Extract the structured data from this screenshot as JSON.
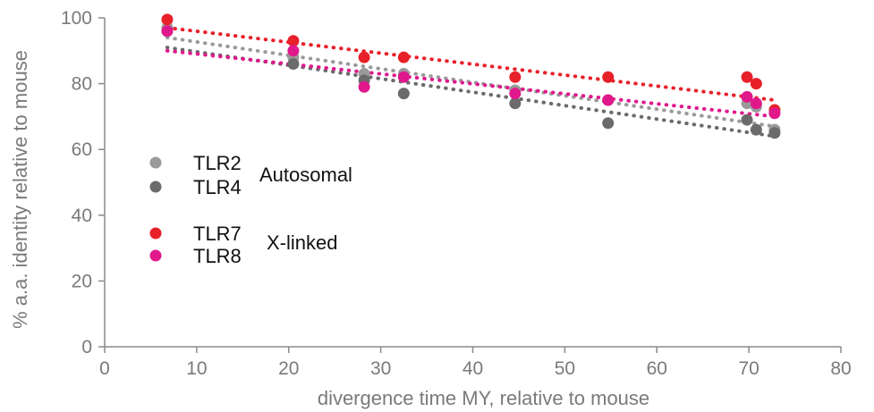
{
  "chart_data": {
    "type": "scatter",
    "xlabel": "divergence time MY, relative to mouse",
    "ylabel": "% a.a. identity relative to mouse",
    "xlim": [
      0,
      80
    ],
    "ylim": [
      0,
      100
    ],
    "xticks": [
      0,
      10,
      20,
      30,
      40,
      50,
      60,
      70,
      80
    ],
    "yticks": [
      0,
      20,
      40,
      60,
      80,
      100
    ],
    "grid": false,
    "trendlines": "linear, dotted",
    "series": [
      {
        "name": "TLR2",
        "color": "#9a9a9a",
        "x": [
          6.8,
          20.5,
          28.2,
          32.5,
          44.6,
          54.7,
          69.8,
          70.8,
          72.8
        ],
        "y": [
          97,
          88,
          83,
          83,
          78,
          75,
          74,
          73,
          66
        ],
        "trend": [
          [
            6.8,
            94
          ],
          [
            72.8,
            67
          ]
        ]
      },
      {
        "name": "TLR4",
        "color": "#6b6b6b",
        "x": [
          6.8,
          20.5,
          28.2,
          32.5,
          44.6,
          54.7,
          69.8,
          70.8,
          72.8
        ],
        "y": [
          96,
          86,
          81,
          77,
          74,
          68,
          69,
          66,
          65
        ],
        "trend": [
          [
            6.8,
            91
          ],
          [
            72.8,
            64
          ]
        ]
      },
      {
        "name": "TLR7",
        "color": "#e8202a",
        "x": [
          6.8,
          20.5,
          28.2,
          32.5,
          44.6,
          54.7,
          69.8,
          70.8,
          72.8
        ],
        "y": [
          99.5,
          93,
          88,
          88,
          82,
          82,
          82,
          80,
          72
        ],
        "trend": [
          [
            6.8,
            97
          ],
          [
            72.8,
            75
          ]
        ]
      },
      {
        "name": "TLR8",
        "color": "#e0188c",
        "x": [
          6.8,
          20.5,
          28.2,
          32.5,
          44.6,
          54.7,
          69.8,
          70.8,
          72.8
        ],
        "y": [
          96,
          90,
          79,
          82,
          77,
          75,
          76,
          74,
          71
        ],
        "trend": [
          [
            6.8,
            90
          ],
          [
            72.8,
            70
          ]
        ]
      }
    ],
    "legend": {
      "placement": "left-middle",
      "groups": [
        {
          "label": "Autosomal",
          "series": [
            "TLR2",
            "TLR4"
          ]
        },
        {
          "label": "X-linked",
          "series": [
            "TLR7",
            "TLR8"
          ]
        }
      ]
    }
  }
}
